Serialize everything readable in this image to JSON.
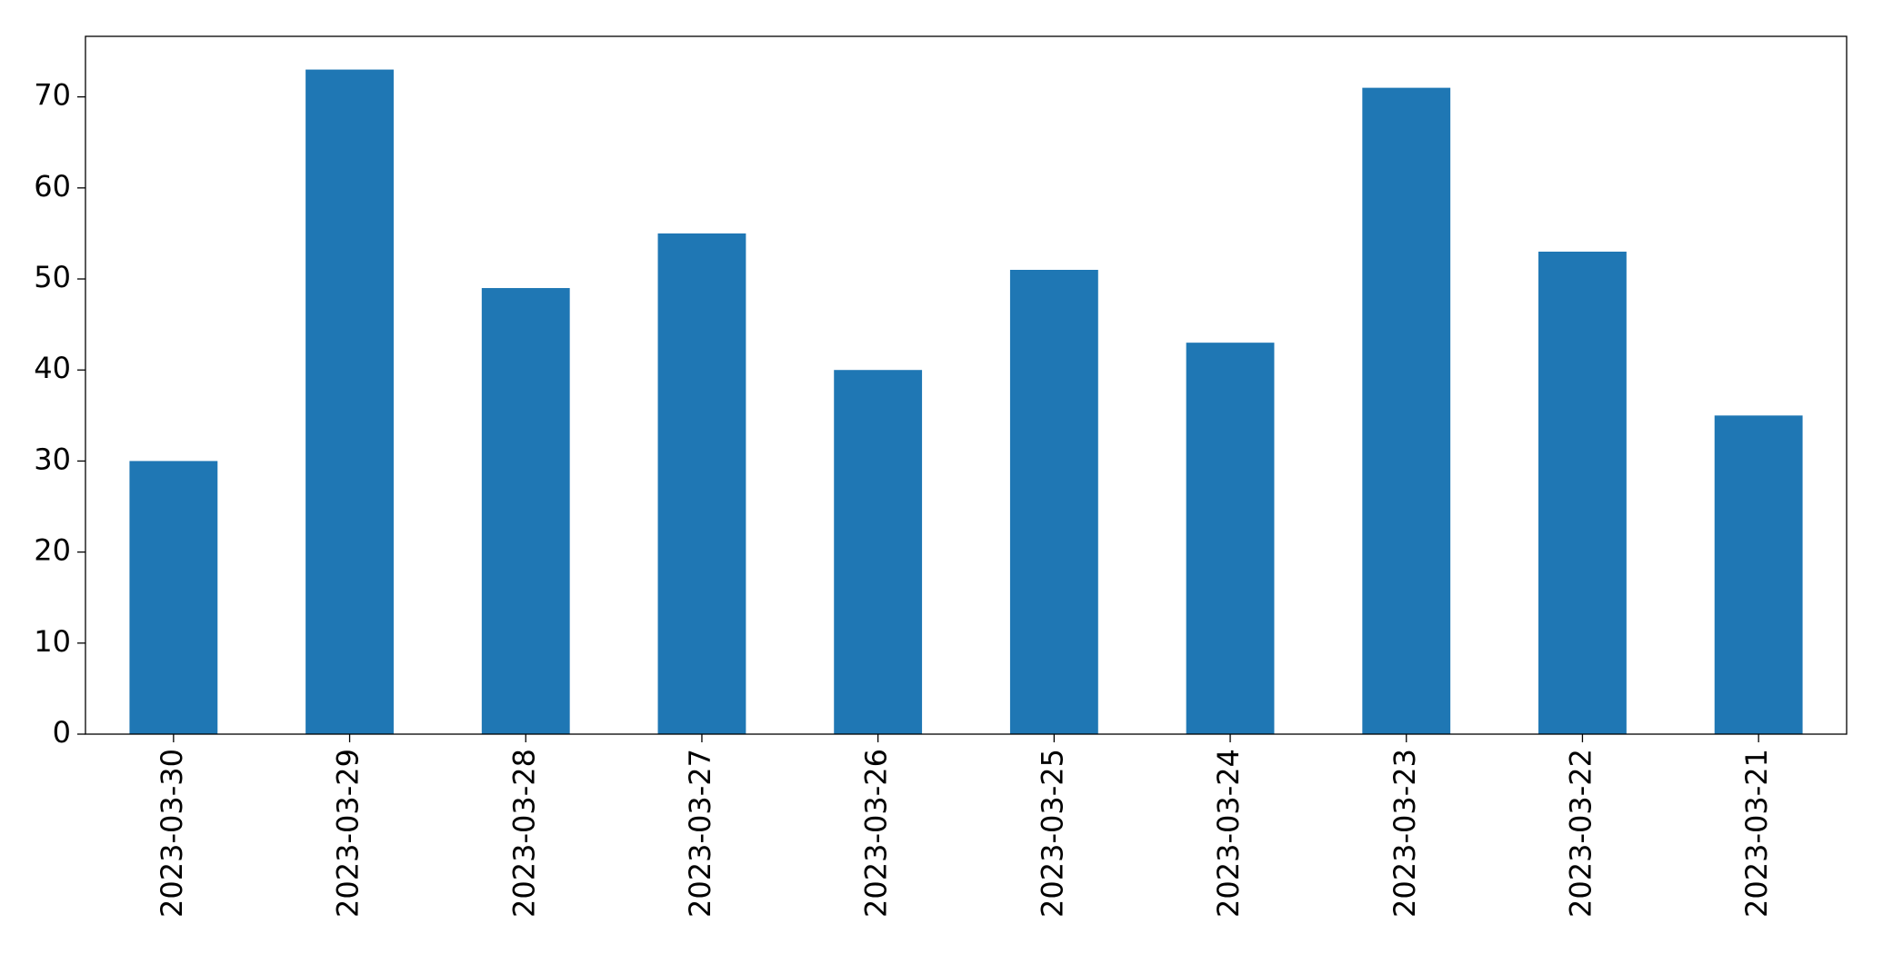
{
  "chart_data": {
    "type": "bar",
    "categories": [
      "2023-03-30",
      "2023-03-29",
      "2023-03-28",
      "2023-03-27",
      "2023-03-26",
      "2023-03-25",
      "2023-03-24",
      "2023-03-23",
      "2023-03-22",
      "2023-03-21"
    ],
    "values": [
      30,
      73,
      49,
      55,
      40,
      51,
      43,
      71,
      53,
      35
    ],
    "color": "#1f77b4",
    "ylim": [
      0,
      76.65
    ],
    "yticks": [
      0,
      10,
      20,
      30,
      40,
      50,
      60,
      70
    ],
    "grid": false
  }
}
